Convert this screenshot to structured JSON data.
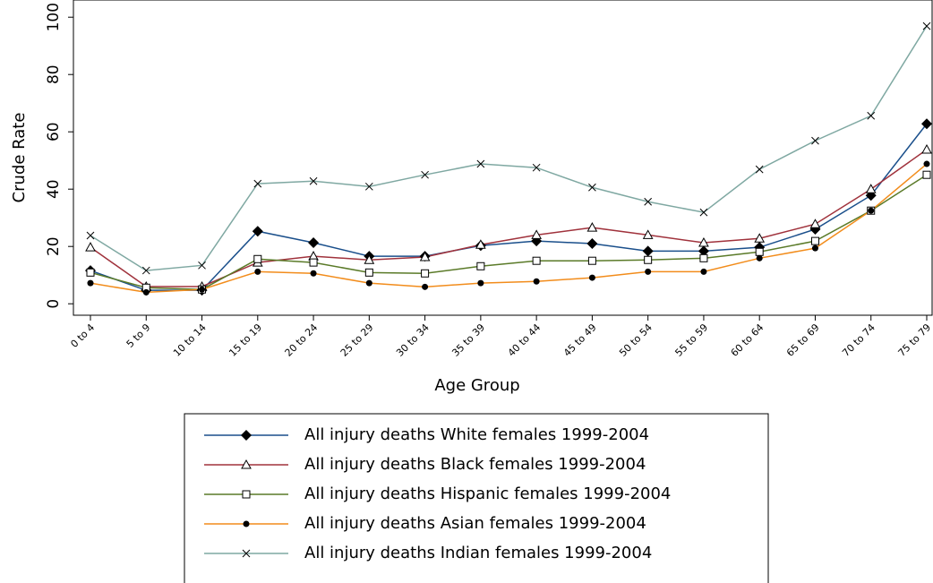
{
  "chart_data": {
    "type": "line",
    "x_label": "Age Group",
    "y_label": "Crude Rate",
    "categories": [
      "0 to 4",
      "5 to 9",
      "10 to 14",
      "15 to 19",
      "20 to 24",
      "25 to 29",
      "30 to 34",
      "35 to 39",
      "40 to 44",
      "45 to 49",
      "50 to 54",
      "55 to 59",
      "60 to 64",
      "65 to 69",
      "70 to 74",
      "75 to 79"
    ],
    "ylim": [
      -4,
      106
    ],
    "yticks": [
      0,
      20,
      40,
      60,
      80,
      100
    ],
    "series": [
      {
        "name": "All injury deaths White females 1999-2004",
        "color": "#1a4f8b",
        "marker": "diamond",
        "values": [
          11.6,
          4.7,
          4.7,
          25.3,
          21.3,
          16.6,
          16.6,
          20.3,
          21.9,
          21,
          18.4,
          18.4,
          19.7,
          26,
          37.8,
          62.8
        ]
      },
      {
        "name": "All injury deaths Black females 1999-2004",
        "color": "#a0323c",
        "marker": "triangle",
        "values": [
          19.7,
          6,
          6,
          14.4,
          16.6,
          15.3,
          16.3,
          20.6,
          24,
          26.6,
          24,
          21.3,
          22.8,
          27.8,
          40,
          53.8
        ]
      },
      {
        "name": "All injury deaths Hispanic females 1999-2004",
        "color": "#5a7a28",
        "marker": "square",
        "values": [
          10.9,
          5.6,
          5,
          15.6,
          14.4,
          10.9,
          10.6,
          13.1,
          15,
          15,
          15.3,
          15.9,
          18.1,
          21.9,
          32.5,
          45
        ]
      },
      {
        "name": "All injury deaths Asian females 1999-2004",
        "color": "#f28c1b",
        "marker": "dot",
        "values": [
          7.2,
          4,
          5,
          11.2,
          10.6,
          7.2,
          5.9,
          7.2,
          7.8,
          9.1,
          11.2,
          11.2,
          15.9,
          19.4,
          32.5,
          48.8
        ]
      },
      {
        "name": "All injury deaths Indian females 1999-2004",
        "color": "#7fa8a2",
        "marker": "x",
        "values": [
          23.8,
          11.6,
          13.4,
          41.9,
          42.8,
          40.9,
          45,
          48.8,
          47.5,
          40.6,
          35.6,
          31.9,
          46.9,
          56.9,
          65.6,
          96.9
        ]
      }
    ]
  }
}
